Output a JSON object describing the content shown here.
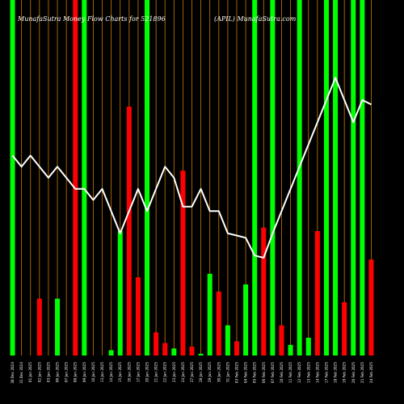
{
  "header": {
    "left_title": "MunafaSutra Money Flow Charts for 521896",
    "right_title": "(APIL) MunafaSutra.com"
  },
  "colors": {
    "background": "#000000",
    "up": "#00ff00",
    "down": "#ff0000",
    "divider": "#cc7a00",
    "line": "#ffffff"
  },
  "chart_data": {
    "type": "bar",
    "categories": [
      "30 Dec 2024",
      "31 Dec 2024",
      "01 Jan 2025",
      "02 Jan 2025",
      "03 Jan 2025",
      "06 Jan 2025",
      "07 Jan 2025",
      "08 Jan 2025",
      "09 Jan 2025",
      "10 Jan 2025",
      "13 Jan 2025",
      "14 Jan 2025",
      "15 Jan 2025",
      "16 Jan 2025",
      "17 Jan 2025",
      "20 Jan 2025",
      "21 Jan 2025",
      "22 Jan 2025",
      "23 Jan 2025",
      "24 Jan 2025",
      "27 Jan 2025",
      "28 Jan 2025",
      "29 Jan 2025",
      "30 Jan 2025",
      "31 Jan 2025",
      "03 Feb 2025",
      "04 Feb 2025",
      "05 Feb 2025",
      "06 Feb 2025",
      "07 Feb 2025",
      "10 Feb 2025",
      "11 Feb 2025",
      "12 Feb 2025",
      "13 Feb 2025",
      "14 Feb 2025",
      "17 Feb 2025",
      "18 Feb 2025",
      "19 Feb 2025",
      "20 Feb 2025",
      "21 Feb 2025",
      "24 Feb 2025"
    ],
    "tick_labels": [
      "30 Dec 2024",
      "31 Dec 2024",
      "01 Jan 2025",
      "02 Jan 2025",
      "03 Jan 2025",
      "06 Jan 2025",
      "07 Jan 2025",
      "08 Jan 2025",
      "09 Jan 2025",
      "10 Jan 2025",
      "13 Jan 2025",
      "14 Jan 2025",
      "15 Jan 2025",
      "16 Jan 2025",
      "17 Jan 2025",
      "20 Jan 2025",
      "21 Jan 2025",
      "22 Jan 2025",
      "23 Jan 2025",
      "24 Jan 2025",
      "27 Jan 2025",
      "28 Jan 2025",
      "29 Jan 2025",
      "30 Jan 2025",
      "31 Jan 2025",
      "03 Feb 2025",
      "04 Feb 2025",
      "05 Feb 2025",
      "06 Feb 2025",
      "07 Feb 2025",
      "10 Feb 2025",
      "11 Feb 2025",
      "12 Feb 2025",
      "13 Feb 2025",
      "14 Feb 2025",
      "17 Feb 2025",
      "18 Feb 2025",
      "19 Feb 2025",
      "20 Feb 2025",
      "21 Feb 2025",
      "24 Feb 2025"
    ],
    "bar_heights": [
      100,
      0,
      0,
      16,
      0,
      16,
      0,
      100,
      100,
      0,
      0,
      1.5,
      35,
      70,
      22,
      100,
      6.5,
      3.5,
      2,
      52,
      2.5,
      0.5,
      23,
      18,
      8.5,
      4,
      20,
      100,
      36,
      100,
      8.5,
      3,
      100,
      5,
      35,
      100,
      100,
      15,
      100,
      100,
      27
    ],
    "bar_colors": [
      "green",
      "red",
      "red",
      "red",
      "green",
      "green",
      "red",
      "red",
      "green",
      "red",
      "red",
      "green",
      "green",
      "red",
      "red",
      "green",
      "red",
      "red",
      "green",
      "red",
      "red",
      "green",
      "green",
      "red",
      "green",
      "red",
      "green",
      "green",
      "red",
      "green",
      "red",
      "green",
      "green",
      "green",
      "red",
      "green",
      "green",
      "red",
      "green",
      "green",
      "red"
    ],
    "price_line": [
      57,
      56.5,
      57,
      56.5,
      56,
      56.5,
      56,
      55.5,
      55.5,
      55,
      55.5,
      54.5,
      53.5,
      54.5,
      55.5,
      54.5,
      55.5,
      56.5,
      56,
      54.7,
      54.7,
      55.5,
      54.5,
      54.5,
      53.5,
      53.4,
      53.3,
      52.5,
      52.4,
      53.5,
      54.5,
      55.5,
      56.5,
      57.5,
      58.5,
      59.5,
      60.5,
      59.5,
      58.5,
      59.5,
      59.3
    ],
    "ylim_bars": [
      0,
      100
    ],
    "ylim_line": [
      48,
      64
    ]
  }
}
